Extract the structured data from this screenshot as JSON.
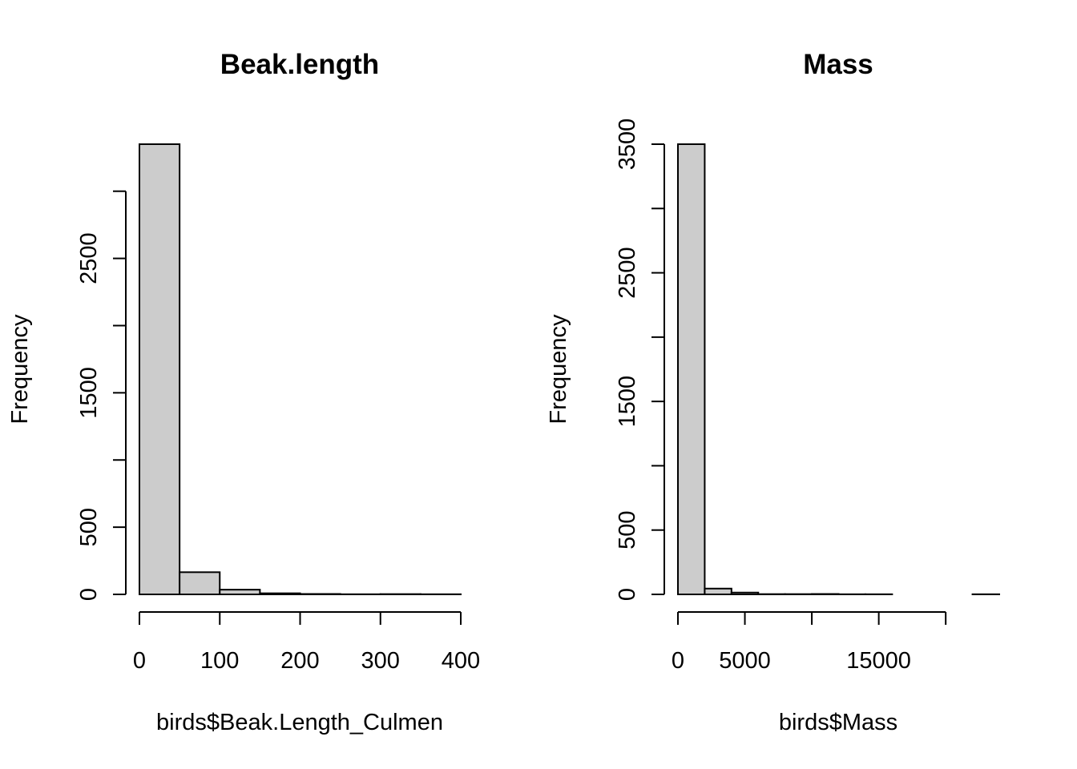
{
  "chart_data": [
    {
      "type": "bar",
      "title": "Beak.length",
      "xlabel": "birds$Beak.Length_Culmen",
      "ylabel": "Frequency",
      "bin_edges": [
        0,
        50,
        100,
        150,
        200,
        250,
        300,
        350,
        400
      ],
      "values": [
        3350,
        165,
        35,
        8,
        3,
        1,
        2,
        1
      ],
      "xticks": [
        0,
        100,
        200,
        300,
        400
      ],
      "xtick_labels": [
        "0",
        "100",
        "200",
        "300",
        "400"
      ],
      "yticks": [
        0,
        500,
        1000,
        1500,
        2000,
        2500,
        3000
      ],
      "ytick_labels": [
        "0",
        "500",
        "",
        "1500",
        "",
        "2500",
        ""
      ],
      "xlim": [
        0,
        400
      ],
      "ylim": [
        0,
        3350
      ],
      "bar_color": "#cccccc",
      "grid": false
    },
    {
      "type": "bar",
      "title": "Mass",
      "xlabel": "birds$Mass",
      "ylabel": "Frequency",
      "bin_edges": [
        0,
        2000,
        4000,
        6000,
        8000,
        10000,
        12000,
        14000,
        16000,
        18000,
        20000,
        22000,
        24000
      ],
      "values": [
        3500,
        45,
        14,
        2,
        2,
        3,
        1,
        1,
        0,
        0,
        0,
        1
      ],
      "xticks": [
        0,
        5000,
        10000,
        15000,
        20000
      ],
      "xtick_labels": [
        "0",
        "5000",
        "",
        "15000",
        ""
      ],
      "yticks": [
        0,
        500,
        1000,
        1500,
        2000,
        2500,
        3000,
        3500
      ],
      "ytick_labels": [
        "0",
        "500",
        "",
        "1500",
        "",
        "2500",
        "",
        "3500"
      ],
      "xlim": [
        0,
        24000
      ],
      "ylim": [
        0,
        3500
      ],
      "bar_color": "#cccccc",
      "grid": false
    }
  ]
}
